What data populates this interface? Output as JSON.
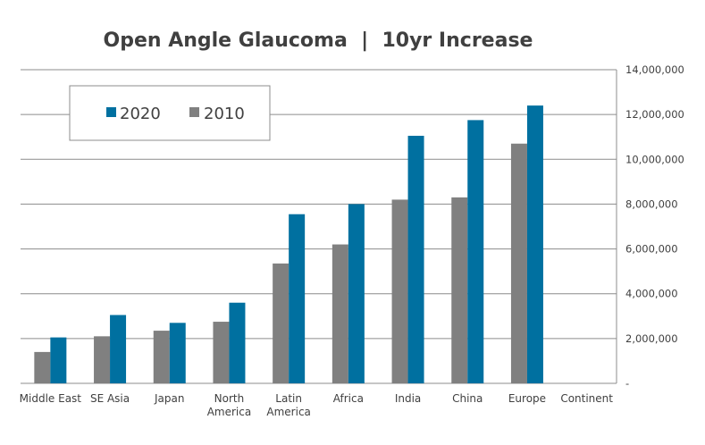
{
  "chart_data": {
    "type": "bar",
    "title": "Open Angle Glaucoma  |  10yr Increase",
    "xlabel": "",
    "ylabel": "",
    "categories": [
      [
        "Middle East"
      ],
      [
        "SE Asia"
      ],
      [
        "Japan"
      ],
      [
        "North",
        "America"
      ],
      [
        "Latin",
        "America"
      ],
      [
        "Africa"
      ],
      [
        "India"
      ],
      [
        "China"
      ],
      [
        "Europe"
      ],
      [
        "Continent"
      ]
    ],
    "series": [
      {
        "name": "2010",
        "color": "#808080",
        "values": [
          1400000,
          2100000,
          2350000,
          2750000,
          5350000,
          6200000,
          8200000,
          8300000,
          10700000,
          null
        ]
      },
      {
        "name": "2020",
        "color": "#0070a0",
        "values": [
          2050000,
          3050000,
          2700000,
          3600000,
          7550000,
          8000000,
          11050000,
          11750000,
          12400000,
          null
        ]
      }
    ],
    "ylim": [
      0,
      14000000
    ],
    "ytick_step": 2000000,
    "ytick_labels": [
      "-",
      "2,000,000",
      "4,000,000",
      "6,000,000",
      "8,000,000",
      "10,000,000",
      "12,000,000",
      "14,000,000"
    ],
    "y_axis_side": "right",
    "grid": true,
    "legend": {
      "placement": "top-left",
      "order": [
        "2020",
        "2010"
      ]
    }
  }
}
